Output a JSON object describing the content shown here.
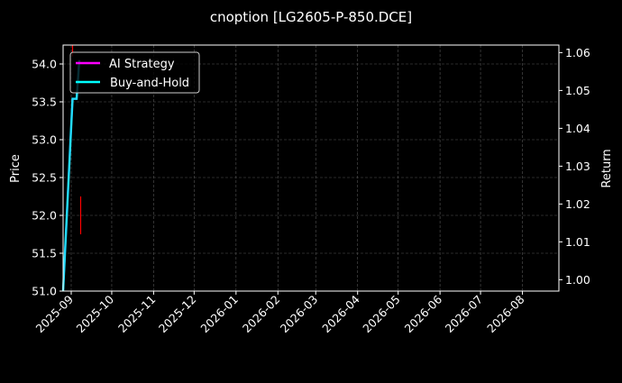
{
  "chart_data": {
    "type": "line",
    "title": "cnoption [LG2605-P-850.DCE]",
    "xlabel": "",
    "ylabel": "Price",
    "y2label": "Return",
    "xlim": [
      "2025-08-26",
      "2026-08-28"
    ],
    "ylim": [
      51.0,
      54.25
    ],
    "y2lim": [
      0.997,
      1.062
    ],
    "x_ticks": [
      "2025-09",
      "2025-10",
      "2025-11",
      "2025-12",
      "2026-01",
      "2026-02",
      "2026-03",
      "2026-04",
      "2026-05",
      "2026-06",
      "2026-07",
      "2026-08"
    ],
    "y_ticks": [
      "51.0",
      "51.5",
      "52.0",
      "52.5",
      "53.0",
      "53.5",
      "54.0"
    ],
    "y2_ticks": [
      "1.00",
      "1.01",
      "1.02",
      "1.03",
      "1.04",
      "1.05",
      "1.06"
    ],
    "grid": true,
    "legend_position": "top-left",
    "candles": [
      {
        "date": "2025-09-02",
        "low": 54.1,
        "high": 54.3,
        "color": "#ff0000"
      },
      {
        "date": "2025-09-08",
        "low": 51.75,
        "high": 52.25,
        "color": "#ff0000"
      }
    ],
    "series": [
      {
        "name": "AI Strategy",
        "color": "#ff00ff",
        "axis": "return",
        "x": [
          "2025-08-26",
          "2025-09-02",
          "2025-09-05",
          "2025-09-07"
        ],
        "values": [
          0.997,
          1.0478,
          1.0478,
          1.058
        ]
      },
      {
        "name": "Buy-and-Hold",
        "color": "#00ffff",
        "axis": "return",
        "x": [
          "2025-08-26",
          "2025-09-02",
          "2025-09-05",
          "2025-09-07"
        ],
        "values": [
          0.997,
          1.0478,
          1.0478,
          1.058
        ]
      }
    ]
  }
}
